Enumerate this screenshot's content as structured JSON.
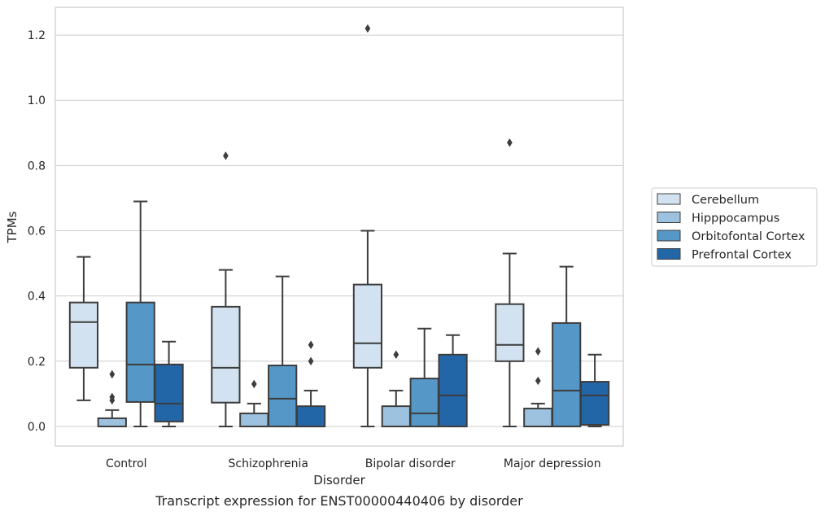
{
  "caption": "Transcript expression for ENST00000440406 by disorder",
  "chart_data": {
    "type": "box",
    "xlabel": "Disorder",
    "ylabel": "TPMs",
    "ylim": [
      -0.06,
      1.285
    ],
    "yticks": [
      "0.0",
      "0.2",
      "0.4",
      "0.6",
      "0.8",
      "1.0",
      "1.2"
    ],
    "ytick_values": [
      0.0,
      0.2,
      0.4,
      0.6,
      0.8,
      1.0,
      1.2
    ],
    "grid": "horizontal",
    "legend_position": "right",
    "categories": [
      "Control",
      "Schizophrenia",
      "Bipolar disorder",
      "Major depression"
    ],
    "series": [
      {
        "name": "Cerebellum",
        "color": "#d2e2f0",
        "boxes": [
          {
            "whislo": 0.08,
            "q1": 0.18,
            "med": 0.32,
            "q3": 0.38,
            "whishi": 0.52,
            "fliers": []
          },
          {
            "whislo": 0.0,
            "q1": 0.073,
            "med": 0.18,
            "q3": 0.367,
            "whishi": 0.48,
            "fliers": [
              0.83
            ]
          },
          {
            "whislo": 0.0,
            "q1": 0.18,
            "med": 0.255,
            "q3": 0.435,
            "whishi": 0.6,
            "fliers": [
              1.22
            ]
          },
          {
            "whislo": 0.0,
            "q1": 0.2,
            "med": 0.25,
            "q3": 0.375,
            "whishi": 0.53,
            "fliers": [
              0.87
            ]
          }
        ]
      },
      {
        "name": "Hipppocampus",
        "color": "#9cc2df",
        "boxes": [
          {
            "whislo": 0.0,
            "q1": 0.0,
            "med": 0.0,
            "q3": 0.025,
            "whishi": 0.05,
            "fliers": [
              0.16,
              0.09,
              0.08
            ]
          },
          {
            "whislo": 0.0,
            "q1": 0.0,
            "med": 0.0,
            "q3": 0.04,
            "whishi": 0.07,
            "fliers": [
              0.13
            ]
          },
          {
            "whislo": 0.0,
            "q1": 0.0,
            "med": 0.0,
            "q3": 0.062,
            "whishi": 0.11,
            "fliers": [
              0.22
            ]
          },
          {
            "whislo": 0.0,
            "q1": 0.0,
            "med": 0.0,
            "q3": 0.055,
            "whishi": 0.07,
            "fliers": [
              0.23,
              0.14
            ]
          }
        ]
      },
      {
        "name": "Orbitofontal Cortex",
        "color": "#5597c6",
        "boxes": [
          {
            "whislo": 0.0,
            "q1": 0.075,
            "med": 0.19,
            "q3": 0.38,
            "whishi": 0.69,
            "fliers": []
          },
          {
            "whislo": 0.0,
            "q1": 0.0,
            "med": 0.085,
            "q3": 0.187,
            "whishi": 0.46,
            "fliers": []
          },
          {
            "whislo": 0.0,
            "q1": 0.0,
            "med": 0.04,
            "q3": 0.147,
            "whishi": 0.3,
            "fliers": []
          },
          {
            "whislo": 0.0,
            "q1": 0.0,
            "med": 0.11,
            "q3": 0.317,
            "whishi": 0.49,
            "fliers": []
          }
        ]
      },
      {
        "name": "Prefrontal Cortex",
        "color": "#2366a8",
        "boxes": [
          {
            "whislo": 0.0,
            "q1": 0.015,
            "med": 0.07,
            "q3": 0.19,
            "whishi": 0.26,
            "fliers": []
          },
          {
            "whislo": 0.0,
            "q1": 0.0,
            "med": 0.0,
            "q3": 0.062,
            "whishi": 0.11,
            "fliers": [
              0.25,
              0.2
            ]
          },
          {
            "whislo": 0.0,
            "q1": 0.0,
            "med": 0.095,
            "q3": 0.22,
            "whishi": 0.28,
            "fliers": []
          },
          {
            "whislo": 0.0,
            "q1": 0.005,
            "med": 0.095,
            "q3": 0.137,
            "whishi": 0.22,
            "fliers": []
          }
        ]
      }
    ]
  }
}
